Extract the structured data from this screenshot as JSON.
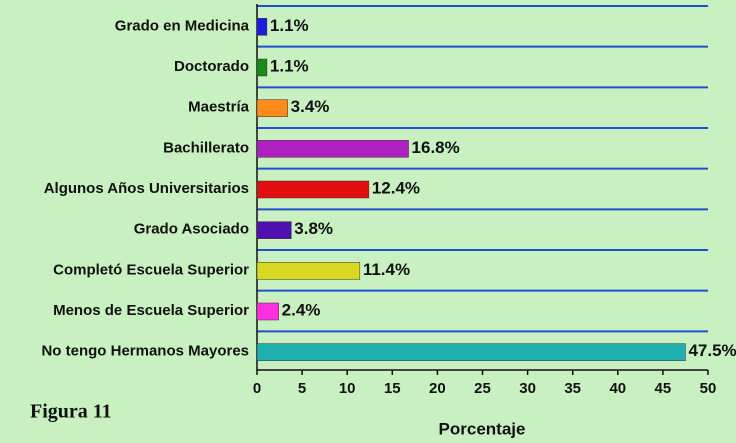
{
  "chart_data": {
    "type": "bar",
    "orientation": "horizontal",
    "categories": [
      "Grado en Medicina",
      "Doctorado",
      "Maestría",
      "Bachillerato",
      "Algunos Años Universitarios",
      "Grado Asociado",
      "Completó Escuela Superior",
      "Menos de Escuela Superior",
      "No tengo Hermanos Mayores"
    ],
    "values": [
      1.1,
      1.1,
      3.4,
      16.8,
      12.4,
      3.8,
      11.4,
      2.4,
      47.5
    ],
    "value_labels": [
      "1.1%",
      "1.1%",
      "3.4%",
      "16.8%",
      "12.4%",
      "3.8%",
      "11.4%",
      "2.4%",
      "47.5%"
    ],
    "colors": [
      "#1a1ae0",
      "#1a8a1a",
      "#ff8c1a",
      "#b020c0",
      "#e01010",
      "#5010b0",
      "#d8d820",
      "#ff30e0",
      "#20b0b0"
    ],
    "xlim": [
      0,
      50
    ],
    "xticks": [
      0,
      5,
      10,
      15,
      20,
      25,
      30,
      35,
      40,
      45,
      50
    ],
    "xlabel": "Porcentaje",
    "annotation": "Figura 11"
  }
}
